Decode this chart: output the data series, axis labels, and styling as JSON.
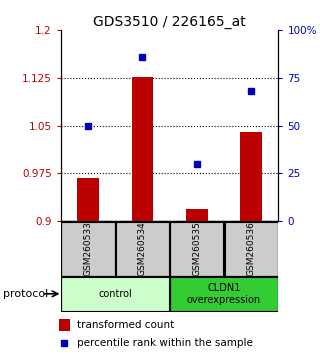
{
  "title": "GDS3510 / 226165_at",
  "samples": [
    "GSM260533",
    "GSM260534",
    "GSM260535",
    "GSM260536"
  ],
  "transformed_counts": [
    0.968,
    1.126,
    0.92,
    1.04
  ],
  "percentile_ranks": [
    50,
    86,
    30,
    68
  ],
  "left_ylim": [
    0.9,
    1.2
  ],
  "left_yticks": [
    0.9,
    0.975,
    1.05,
    1.125,
    1.2
  ],
  "left_ytick_labels": [
    "0.9",
    "0.975",
    "1.05",
    "1.125",
    "1.2"
  ],
  "right_ylim": [
    0,
    100
  ],
  "right_yticks": [
    0,
    25,
    50,
    75,
    100
  ],
  "right_ytick_labels": [
    "0",
    "25",
    "50",
    "75",
    "100%"
  ],
  "bar_color": "#bb0000",
  "marker_color": "#0000bb",
  "control_color": "#ccffcc",
  "overexp_color": "#33cc33",
  "sample_box_color": "#cccccc",
  "groups": [
    {
      "label": "control",
      "indices": [
        0,
        1
      ],
      "color": "#ccffcc"
    },
    {
      "label": "CLDN1\noverexpression",
      "indices": [
        2,
        3
      ],
      "color": "#33cc33"
    }
  ],
  "protocol_label": "protocol",
  "legend_bar_label": "transformed count",
  "legend_marker_label": "percentile rank within the sample",
  "title_fontsize": 10,
  "tick_fontsize": 7.5,
  "legend_fontsize": 7.5
}
